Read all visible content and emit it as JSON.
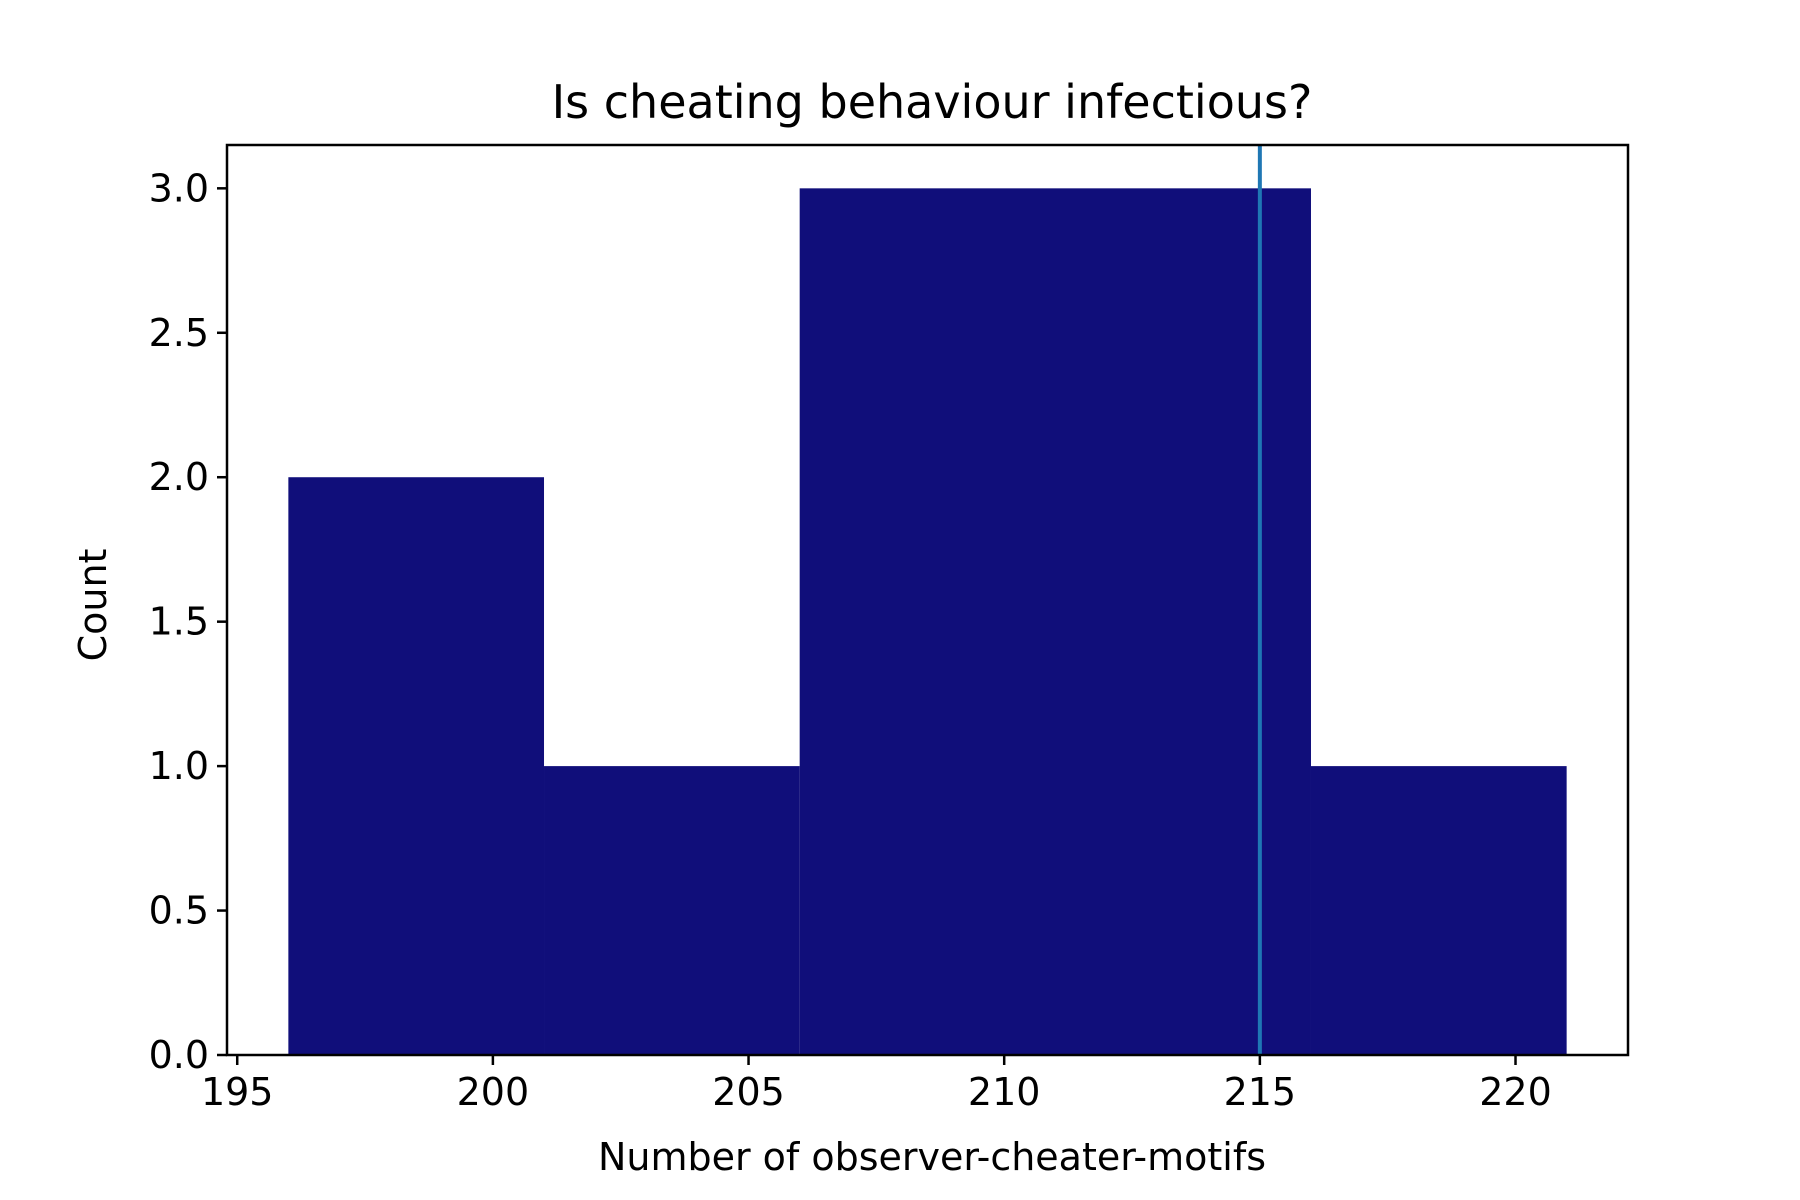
{
  "chart_data": {
    "type": "bar",
    "title": "Is cheating behaviour infectious?",
    "xlabel": "Number of observer-cheater-motifs",
    "ylabel": "Count",
    "xlim": [
      194.8,
      222.2
    ],
    "ylim": [
      0,
      3.15
    ],
    "xticks": [
      195,
      200,
      205,
      210,
      215,
      220
    ],
    "xtick_labels": [
      "195",
      "200",
      "205",
      "210",
      "215",
      "220"
    ],
    "yticks": [
      0,
      0.5,
      1.0,
      1.5,
      2.0,
      2.5,
      3.0
    ],
    "ytick_labels": [
      "0.0",
      "0.5",
      "1.0",
      "1.5",
      "2.0",
      "2.5",
      "3.0"
    ],
    "bins": [
      {
        "start": 196,
        "end": 201,
        "count": 2
      },
      {
        "start": 201,
        "end": 206,
        "count": 1
      },
      {
        "start": 206,
        "end": 216,
        "count": 3
      },
      {
        "start": 216,
        "end": 221,
        "count": 1
      }
    ],
    "vline": {
      "x": 215
    },
    "grid": false,
    "legend": "none",
    "colors": {
      "bar": "#100e7a",
      "vline": "#1f77b4",
      "axes": "#000000"
    }
  }
}
